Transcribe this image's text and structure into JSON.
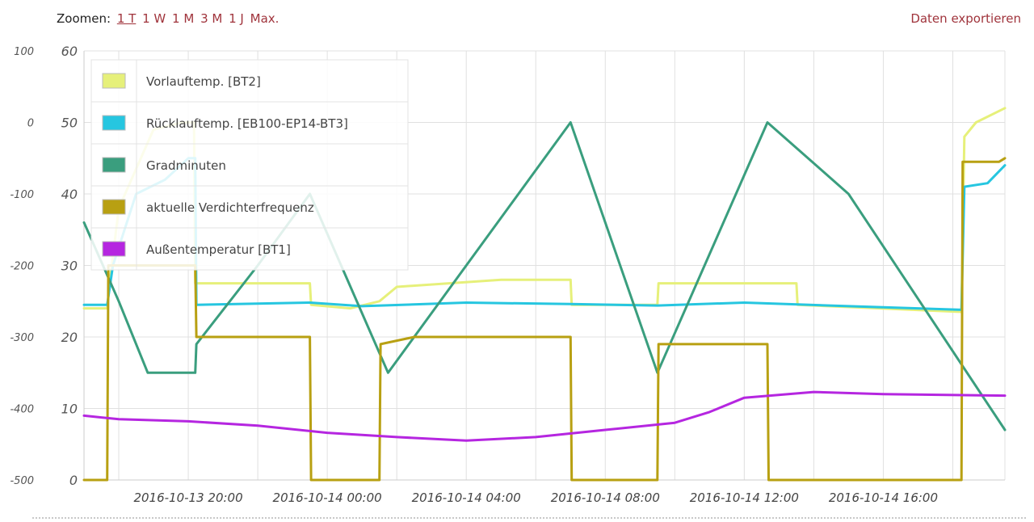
{
  "toolbar": {
    "zoom_label": "Zoomen:",
    "zoom_options": [
      "1 T",
      "1 W",
      "1 M",
      "3 M",
      "1 J",
      "Max."
    ],
    "active_zoom": "1 T",
    "export_label": "Daten exportieren"
  },
  "colors": {
    "vorlauf": "#e6f07a",
    "ruecklauf": "#26c6e0",
    "gradminuten": "#3a9e7e",
    "verdichter": "#b8a012",
    "aussen": "#b526e0",
    "grid": "#e0e0e0",
    "accent": "#a0343c"
  },
  "chart_data": {
    "type": "line",
    "x_range": [
      "2016-10-13 17:00",
      "2016-10-14 19:30"
    ],
    "x_ticks": [
      "2016-10-13 20:00",
      "2016-10-14 00:00",
      "2016-10-14 04:00",
      "2016-10-14 08:00",
      "2016-10-14 12:00",
      "2016-10-14 16:00"
    ],
    "left_axis": {
      "ticks": [
        100,
        0,
        -100,
        -200,
        -300,
        -400,
        -500
      ],
      "range": [
        -500,
        100
      ]
    },
    "right_axis": {
      "ticks": [
        60,
        50,
        40,
        30,
        20,
        10,
        0
      ],
      "range": [
        0,
        60
      ]
    },
    "legend_placement": "top-left",
    "grid": true,
    "series": [
      {
        "name": "Vorlauftemp. [BT2]",
        "axis": "right",
        "color_key": "vorlauf",
        "points": [
          [
            "2016-10-13 17:00",
            24
          ],
          [
            "2016-10-13 17:40",
            24
          ],
          [
            "2016-10-13 17:45",
            28
          ],
          [
            "2016-10-13 18:00",
            38
          ],
          [
            "2016-10-13 19:00",
            49
          ],
          [
            "2016-10-13 19:50",
            50
          ],
          [
            "2016-10-13 20:10",
            50
          ],
          [
            "2016-10-13 20:12",
            27.5
          ],
          [
            "2016-10-13 23:30",
            27.5
          ],
          [
            "2016-10-13 23:32",
            24.5
          ],
          [
            "2016-10-14 00:40",
            24
          ],
          [
            "2016-10-14 01:30",
            25
          ],
          [
            "2016-10-14 02:00",
            27
          ],
          [
            "2016-10-14 05:00",
            28
          ],
          [
            "2016-10-14 07:00",
            28
          ],
          [
            "2016-10-14 07:02",
            24.5
          ],
          [
            "2016-10-14 09:30",
            24.5
          ],
          [
            "2016-10-14 09:32",
            27.5
          ],
          [
            "2016-10-14 13:30",
            27.5
          ],
          [
            "2016-10-14 13:32",
            24.5
          ],
          [
            "2016-10-14 18:15",
            23.5
          ],
          [
            "2016-10-14 18:20",
            48
          ],
          [
            "2016-10-14 18:40",
            50
          ],
          [
            "2016-10-14 19:30",
            52
          ]
        ]
      },
      {
        "name": "Rücklauftemp. [EB100-EP14-BT3]",
        "axis": "right",
        "color_key": "ruecklauf",
        "points": [
          [
            "2016-10-13 17:00",
            24.5
          ],
          [
            "2016-10-13 17:40",
            24.5
          ],
          [
            "2016-10-13 17:50",
            30
          ],
          [
            "2016-10-13 18:30",
            40
          ],
          [
            "2016-10-13 19:20",
            42
          ],
          [
            "2016-10-13 20:00",
            45
          ],
          [
            "2016-10-13 20:12",
            45
          ],
          [
            "2016-10-13 20:14",
            24.5
          ],
          [
            "2016-10-13 23:30",
            24.8
          ],
          [
            "2016-10-14 01:00",
            24.3
          ],
          [
            "2016-10-14 04:00",
            24.8
          ],
          [
            "2016-10-14 07:00",
            24.6
          ],
          [
            "2016-10-14 09:30",
            24.4
          ],
          [
            "2016-10-14 12:00",
            24.8
          ],
          [
            "2016-10-14 15:00",
            24.3
          ],
          [
            "2016-10-14 18:15",
            23.8
          ],
          [
            "2016-10-14 18:20",
            41
          ],
          [
            "2016-10-14 19:00",
            41.5
          ],
          [
            "2016-10-14 19:30",
            44
          ]
        ]
      },
      {
        "name": "Gradminuten",
        "axis": "left",
        "color_key": "gradminuten",
        "points": [
          [
            "2016-10-13 17:00",
            -140
          ],
          [
            "2016-10-13 18:00",
            -250
          ],
          [
            "2016-10-13 18:50",
            -350
          ],
          [
            "2016-10-13 20:12",
            -350
          ],
          [
            "2016-10-13 20:14",
            -310
          ],
          [
            "2016-10-13 22:00",
            -200
          ],
          [
            "2016-10-13 23:30",
            -100
          ],
          [
            "2016-10-14 01:45",
            -350
          ],
          [
            "2016-10-14 07:00",
            0
          ],
          [
            "2016-10-14 09:30",
            -350
          ],
          [
            "2016-10-14 12:40",
            0
          ],
          [
            "2016-10-14 15:00",
            -100
          ],
          [
            "2016-10-14 19:30",
            -430
          ]
        ]
      },
      {
        "name": "aktuelle Verdichterfrequenz",
        "axis": "right",
        "color_key": "verdichter",
        "points": [
          [
            "2016-10-13 17:00",
            0
          ],
          [
            "2016-10-13 17:40",
            0
          ],
          [
            "2016-10-13 17:42",
            30
          ],
          [
            "2016-10-13 20:12",
            30
          ],
          [
            "2016-10-13 20:14",
            20
          ],
          [
            "2016-10-13 23:30",
            20
          ],
          [
            "2016-10-13 23:32",
            0
          ],
          [
            "2016-10-14 01:30",
            0
          ],
          [
            "2016-10-14 01:32",
            19
          ],
          [
            "2016-10-14 02:30",
            20
          ],
          [
            "2016-10-14 07:00",
            20
          ],
          [
            "2016-10-14 07:02",
            0
          ],
          [
            "2016-10-14 09:30",
            0
          ],
          [
            "2016-10-14 09:32",
            19
          ],
          [
            "2016-10-14 12:40",
            19
          ],
          [
            "2016-10-14 12:42",
            0
          ],
          [
            "2016-10-14 18:15",
            0
          ],
          [
            "2016-10-14 18:17",
            44.5
          ],
          [
            "2016-10-14 19:20",
            44.5
          ],
          [
            "2016-10-14 19:30",
            45
          ]
        ]
      },
      {
        "name": "Außentemperatur [BT1]",
        "axis": "right",
        "color_key": "aussen",
        "points": [
          [
            "2016-10-13 17:00",
            9
          ],
          [
            "2016-10-13 18:00",
            8.5
          ],
          [
            "2016-10-13 20:00",
            8.2
          ],
          [
            "2016-10-13 22:00",
            7.6
          ],
          [
            "2016-10-14 00:00",
            6.6
          ],
          [
            "2016-10-14 02:00",
            6
          ],
          [
            "2016-10-14 04:00",
            5.5
          ],
          [
            "2016-10-14 06:00",
            6
          ],
          [
            "2016-10-14 08:00",
            7
          ],
          [
            "2016-10-14 10:00",
            8
          ],
          [
            "2016-10-14 11:00",
            9.5
          ],
          [
            "2016-10-14 12:00",
            11.5
          ],
          [
            "2016-10-14 14:00",
            12.3
          ],
          [
            "2016-10-14 16:00",
            12
          ],
          [
            "2016-10-14 19:30",
            11.8
          ]
        ]
      }
    ]
  }
}
